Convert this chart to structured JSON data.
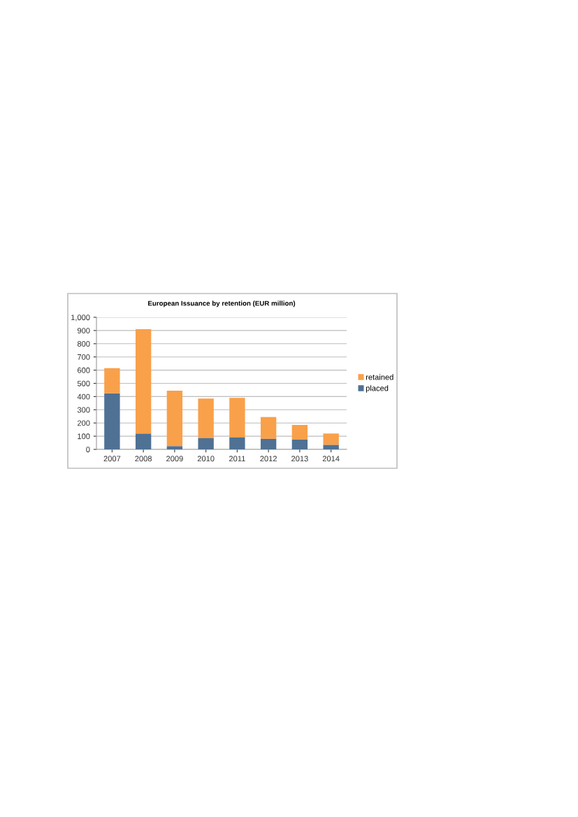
{
  "chart_data": {
    "type": "bar",
    "title": "European Issuance by retention (EUR million)",
    "categories": [
      "2007",
      "2008",
      "2009",
      "2010",
      "2011",
      "2012",
      "2013",
      "2014"
    ],
    "stacked": true,
    "series": [
      {
        "name": "placed",
        "color": "#4f7194",
        "values": [
          425,
          120,
          25,
          85,
          90,
          80,
          75,
          35
        ]
      },
      {
        "name": "retained",
        "color": "#f9a04a",
        "values": [
          190,
          790,
          420,
          300,
          300,
          165,
          110,
          85
        ]
      }
    ],
    "ylim": [
      0,
      1000
    ],
    "yticks": [
      {
        "value": 0,
        "label": "0"
      },
      {
        "value": 100,
        "label": "100"
      },
      {
        "value": 200,
        "label": "200"
      },
      {
        "value": 300,
        "label": "300"
      },
      {
        "value": 400,
        "label": "400"
      },
      {
        "value": 500,
        "label": "500"
      },
      {
        "value": 600,
        "label": "600"
      },
      {
        "value": 700,
        "label": "700"
      },
      {
        "value": 800,
        "label": "800"
      },
      {
        "value": 900,
        "label": "900"
      },
      {
        "value": 1000,
        "label": "1,000"
      }
    ],
    "grid": "y",
    "legend": "right"
  }
}
